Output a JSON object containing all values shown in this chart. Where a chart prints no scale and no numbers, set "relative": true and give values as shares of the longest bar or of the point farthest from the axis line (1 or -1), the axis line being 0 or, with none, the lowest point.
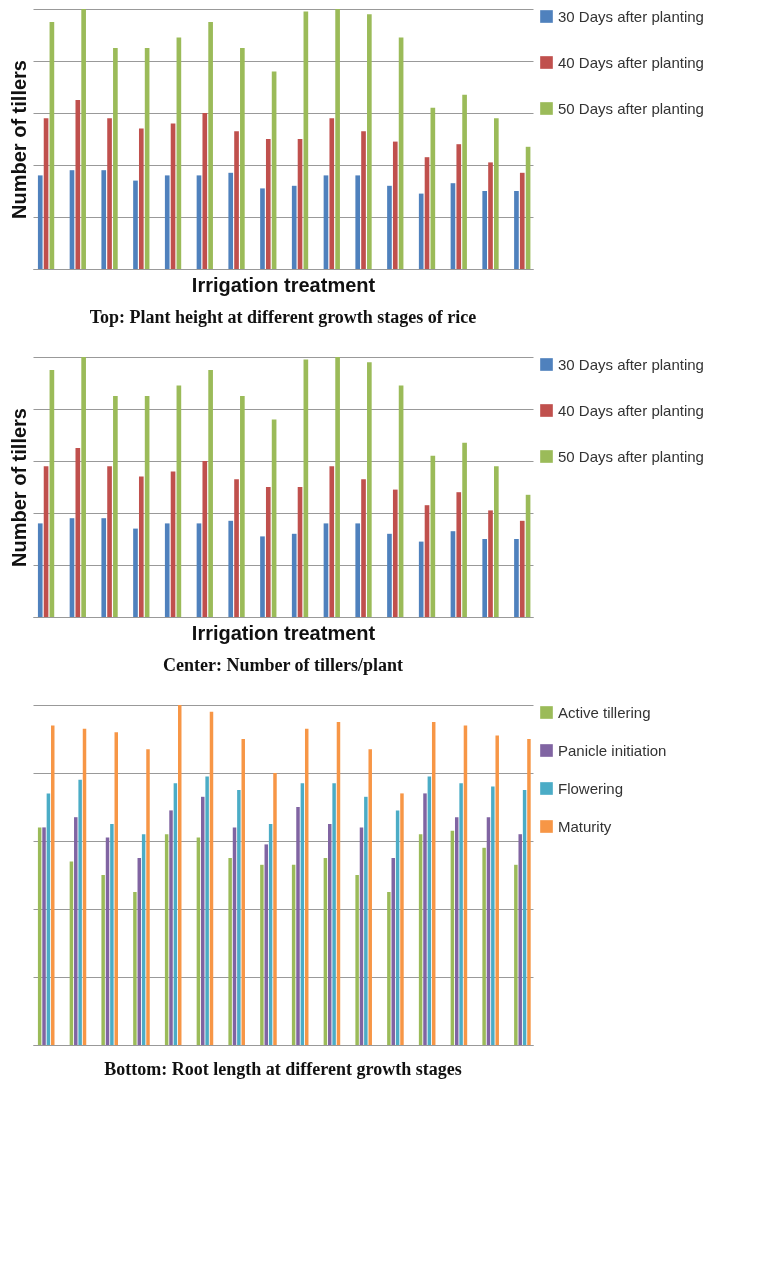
{
  "chart_data": [
    {
      "type": "bar",
      "title": "Top: Plant height at different growth stages of rice",
      "xlabel": "Irrigation treatment",
      "ylabel": "Number of tillers",
      "relative": true,
      "grid": "y",
      "legend": "right",
      "categories": [
        null,
        null,
        null,
        null,
        null,
        null,
        null,
        null,
        null,
        null,
        null,
        null,
        null,
        null,
        null,
        null
      ],
      "series": [
        {
          "name": "30 Days after planting",
          "color": "#4f81bd",
          "values": [
            0.36,
            0.38,
            0.38,
            0.34,
            0.36,
            0.36,
            0.37,
            0.31,
            0.32,
            0.36,
            0.36,
            0.32,
            0.29,
            0.33,
            0.3,
            0.3
          ]
        },
        {
          "name": "40 Days after planting",
          "color": "#c0504d",
          "values": [
            0.58,
            0.65,
            0.58,
            0.54,
            0.56,
            0.6,
            0.53,
            0.5,
            0.5,
            0.58,
            0.53,
            0.49,
            0.43,
            0.48,
            0.41,
            0.37
          ]
        },
        {
          "name": "50 Days after planting",
          "color": "#9bbb59",
          "values": [
            0.95,
            1.0,
            0.85,
            0.85,
            0.89,
            0.95,
            0.85,
            0.76,
            0.99,
            1.0,
            0.98,
            0.89,
            0.62,
            0.67,
            0.58,
            0.47
          ]
        }
      ]
    },
    {
      "type": "bar",
      "title": "Center: Number of tillers/plant",
      "xlabel": "Irrigation treatment",
      "ylabel": "Number of tillers",
      "relative": true,
      "grid": "y",
      "legend": "right",
      "categories": [
        null,
        null,
        null,
        null,
        null,
        null,
        null,
        null,
        null,
        null,
        null,
        null,
        null,
        null,
        null,
        null
      ],
      "series": [
        {
          "name": "30 Days after planting",
          "color": "#4f81bd",
          "values": [
            0.36,
            0.38,
            0.38,
            0.34,
            0.36,
            0.36,
            0.37,
            0.31,
            0.32,
            0.36,
            0.36,
            0.32,
            0.29,
            0.33,
            0.3,
            0.3
          ]
        },
        {
          "name": "40 Days after planting",
          "color": "#c0504d",
          "values": [
            0.58,
            0.65,
            0.58,
            0.54,
            0.56,
            0.6,
            0.53,
            0.5,
            0.5,
            0.58,
            0.53,
            0.49,
            0.43,
            0.48,
            0.41,
            0.37
          ]
        },
        {
          "name": "50 Days after planting",
          "color": "#9bbb59",
          "values": [
            0.95,
            1.0,
            0.85,
            0.85,
            0.89,
            0.95,
            0.85,
            0.76,
            0.99,
            1.0,
            0.98,
            0.89,
            0.62,
            0.67,
            0.58,
            0.47
          ]
        }
      ]
    },
    {
      "type": "bar",
      "title": "Bottom: Root length at different growth stages",
      "relative": true,
      "grid": "y",
      "legend": "right",
      "categories": [
        null,
        null,
        null,
        null,
        null,
        null,
        null,
        null,
        null,
        null,
        null,
        null,
        null,
        null,
        null,
        null
      ],
      "series": [
        {
          "name": "Active tillering",
          "color": "#9bbb59",
          "values": [
            0.64,
            0.54,
            0.5,
            0.45,
            0.62,
            0.61,
            0.55,
            0.53,
            0.53,
            0.55,
            0.5,
            0.45,
            0.62,
            0.63,
            0.58,
            0.53
          ]
        },
        {
          "name": "Panicle initiation",
          "color": "#8064a2",
          "values": [
            0.64,
            0.67,
            0.61,
            0.55,
            0.69,
            0.73,
            0.64,
            0.59,
            0.7,
            0.65,
            0.64,
            0.55,
            0.74,
            0.67,
            0.67,
            0.62
          ]
        },
        {
          "name": "Flowering",
          "color": "#4bacc6",
          "values": [
            0.74,
            0.78,
            0.65,
            0.62,
            0.77,
            0.79,
            0.75,
            0.65,
            0.77,
            0.77,
            0.73,
            0.69,
            0.79,
            0.77,
            0.76,
            0.75
          ]
        },
        {
          "name": "Maturity",
          "color": "#f79646",
          "values": [
            0.94,
            0.93,
            0.92,
            0.87,
            1.0,
            0.98,
            0.9,
            0.8,
            0.93,
            0.95,
            0.87,
            0.74,
            0.95,
            0.94,
            0.91,
            0.9
          ]
        }
      ]
    }
  ]
}
